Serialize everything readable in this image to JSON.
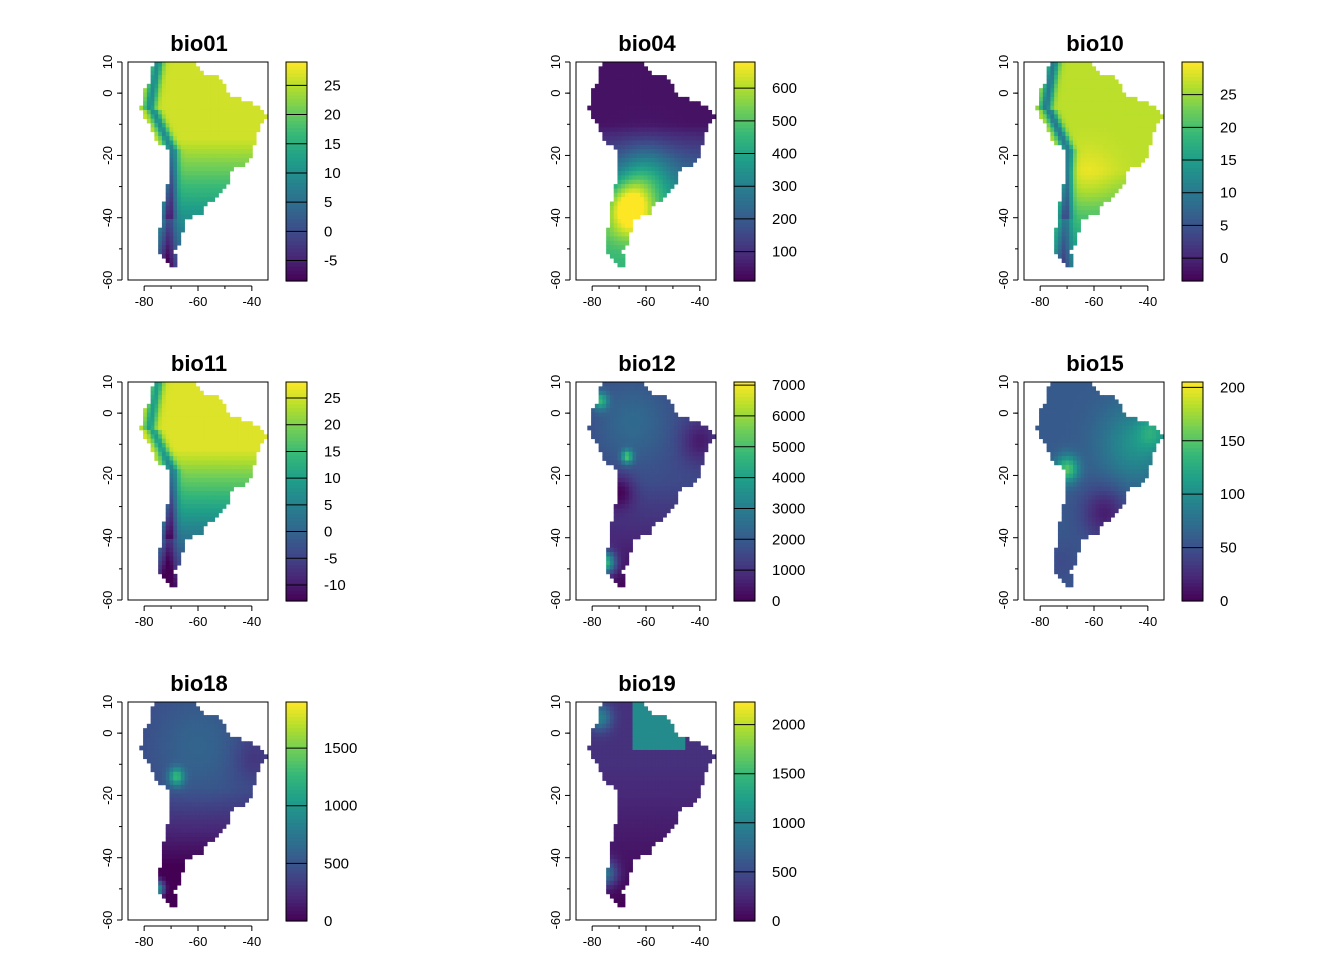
{
  "colors": {
    "viridis": [
      "#440154",
      "#482878",
      "#3E4A89",
      "#31688E",
      "#26828E",
      "#1F9E89",
      "#35B779",
      "#6DCD59",
      "#B4DE2C",
      "#FDE725"
    ],
    "background": "#ffffff",
    "axis": "#000000"
  },
  "chart_data": [
    {
      "type": "heatmap",
      "title": "bio01",
      "xticks": [
        "-80",
        "-60",
        "-40"
      ],
      "yticks": [
        "10",
        "0",
        "-20",
        "-40",
        "-60"
      ],
      "xlim": [
        -86,
        -34
      ],
      "ylim": [
        -60,
        10
      ],
      "legend": {
        "ticks": [
          "25",
          "20",
          "15",
          "10",
          "5",
          "0",
          "-5"
        ],
        "range": [
          -8.5,
          29
        ]
      }
    },
    {
      "type": "heatmap",
      "title": "bio04",
      "xticks": [
        "-80",
        "-60",
        "-40"
      ],
      "yticks": [
        "10",
        "0",
        "-20",
        "-40",
        "-60"
      ],
      "xlim": [
        -86,
        -34
      ],
      "ylim": [
        -60,
        10
      ],
      "legend": {
        "ticks": [
          "600",
          "500",
          "400",
          "300",
          "200",
          "100"
        ],
        "range": [
          10,
          680
        ]
      }
    },
    {
      "type": "heatmap",
      "title": "bio10",
      "xticks": [
        "-80",
        "-60",
        "-40"
      ],
      "yticks": [
        "10",
        "0",
        "-20",
        "-40",
        "-60"
      ],
      "xlim": [
        -86,
        -34
      ],
      "ylim": [
        -60,
        10
      ],
      "legend": {
        "ticks": [
          "25",
          "20",
          "15",
          "10",
          "5",
          "0"
        ],
        "range": [
          -3.5,
          30
        ]
      }
    },
    {
      "type": "heatmap",
      "title": "bio11",
      "xticks": [
        "-80",
        "-60",
        "-40"
      ],
      "yticks": [
        "10",
        "0",
        "-20",
        "-40",
        "-60"
      ],
      "xlim": [
        -86,
        -34
      ],
      "ylim": [
        -60,
        10
      ],
      "legend": {
        "ticks": [
          "25",
          "20",
          "15",
          "10",
          "5",
          "0",
          "-5",
          "-10"
        ],
        "range": [
          -13,
          28
        ]
      }
    },
    {
      "type": "heatmap",
      "title": "bio12",
      "xticks": [
        "-80",
        "-60",
        "-40"
      ],
      "yticks": [
        "10",
        "0",
        "-20",
        "-40",
        "-60"
      ],
      "xlim": [
        -86,
        -34
      ],
      "ylim": [
        -60,
        10
      ],
      "legend": {
        "ticks": [
          "7000",
          "6000",
          "5000",
          "4000",
          "3000",
          "2000",
          "1000",
          "0"
        ],
        "range": [
          0,
          7100
        ]
      }
    },
    {
      "type": "heatmap",
      "title": "bio15",
      "xticks": [
        "-80",
        "-60",
        "-40"
      ],
      "yticks": [
        "10",
        "0",
        "-20",
        "-40",
        "-60"
      ],
      "xlim": [
        -86,
        -34
      ],
      "ylim": [
        -60,
        10
      ],
      "legend": {
        "ticks": [
          "200",
          "150",
          "100",
          "50",
          "0"
        ],
        "range": [
          0,
          205
        ]
      }
    },
    {
      "type": "heatmap",
      "title": "bio18",
      "xticks": [
        "-80",
        "-60",
        "-40"
      ],
      "yticks": [
        "10",
        "0",
        "-20",
        "-40",
        "-60"
      ],
      "xlim": [
        -86,
        -34
      ],
      "ylim": [
        -60,
        10
      ],
      "legend": {
        "ticks": [
          "1500",
          "1000",
          "500",
          "0"
        ],
        "range": [
          0,
          1900
        ]
      }
    },
    {
      "type": "heatmap",
      "title": "bio19",
      "xticks": [
        "-80",
        "-60",
        "-40"
      ],
      "yticks": [
        "10",
        "0",
        "-20",
        "-40",
        "-60"
      ],
      "xlim": [
        -86,
        -34
      ],
      "ylim": [
        -60,
        10
      ],
      "legend": {
        "ticks": [
          "2000",
          "1500",
          "1000",
          "500",
          "0"
        ],
        "range": [
          0,
          2230
        ]
      }
    }
  ]
}
